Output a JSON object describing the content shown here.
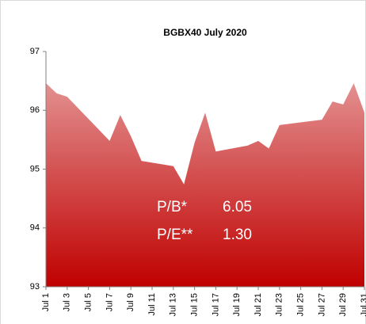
{
  "chart_data": {
    "type": "area",
    "title": "BGBX40  July 2020",
    "x": [
      1,
      2,
      3,
      7,
      8,
      9,
      10,
      13,
      14,
      15,
      16,
      17,
      20,
      21,
      22,
      23,
      27,
      28,
      29,
      30,
      31
    ],
    "series": [
      {
        "name": "BGBX40",
        "color": "#c00000",
        "values": [
          96.46,
          96.29,
          96.23,
          95.48,
          95.92,
          95.56,
          95.14,
          95.05,
          94.74,
          95.45,
          95.96,
          95.3,
          95.4,
          95.48,
          95.35,
          95.75,
          95.84,
          96.15,
          96.1,
          96.46,
          95.96
        ]
      }
    ],
    "xlim": [
      1,
      31
    ],
    "xticks": [
      {
        "value": 1,
        "label": "Jul 1"
      },
      {
        "value": 3,
        "label": "Jul 3"
      },
      {
        "value": 5,
        "label": "Jul 5"
      },
      {
        "value": 7,
        "label": "Jul 7"
      },
      {
        "value": 9,
        "label": "Jul 9"
      },
      {
        "value": 11,
        "label": "Jul 11"
      },
      {
        "value": 13,
        "label": "Jul 13"
      },
      {
        "value": 15,
        "label": "Jul 15"
      },
      {
        "value": 17,
        "label": "Jul 17"
      },
      {
        "value": 19,
        "label": "Jul 19"
      },
      {
        "value": 21,
        "label": "Jul 21"
      },
      {
        "value": 23,
        "label": "Jul 23"
      },
      {
        "value": 25,
        "label": "Jul 25"
      },
      {
        "value": 27,
        "label": "Jul 27"
      },
      {
        "value": 29,
        "label": "Jul 29"
      },
      {
        "value": 31,
        "label": "Jul 31"
      }
    ],
    "ylim": [
      93,
      97
    ],
    "yticks": [
      93,
      94,
      95,
      96,
      97
    ],
    "annotations": [
      {
        "label": "P/B*",
        "value": "6.05"
      },
      {
        "label": "P/E**",
        "value": "1.30"
      }
    ]
  }
}
